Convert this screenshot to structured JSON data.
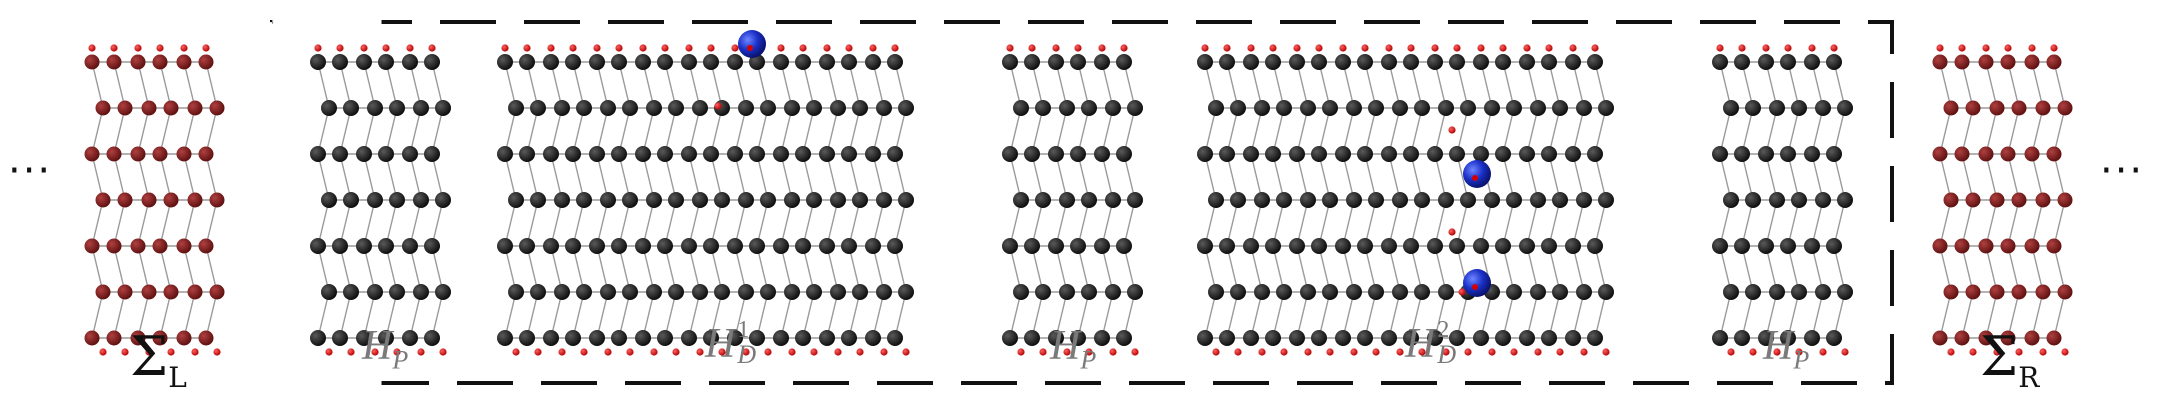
{
  "colors": {
    "lead": "#7a1a1a",
    "lead_edge": "#a02828",
    "carbon": "#111111",
    "hydrogen": "#d40000",
    "adatom": "#1428b4",
    "bond": "#9a9a9a",
    "dash": "#111111",
    "label_gray": "#7a7a7a"
  },
  "labels": {
    "sigma_left": "Σ",
    "sigma_left_sub": "L",
    "sigma_right": "Σ",
    "sigma_right_sub": "R",
    "hp1": "H",
    "hp1_sub": "P",
    "hd1": "H",
    "hd1_sub": "D",
    "hd1_sup": "1",
    "hp2": "H",
    "hp2_sub": "P",
    "hd2": "H",
    "hd2_sub": "D",
    "hd2_sup": "2",
    "hp3": "H",
    "hp3_sub": "P",
    "ellipsis_left": "···",
    "ellipsis_right": "···"
  }
}
